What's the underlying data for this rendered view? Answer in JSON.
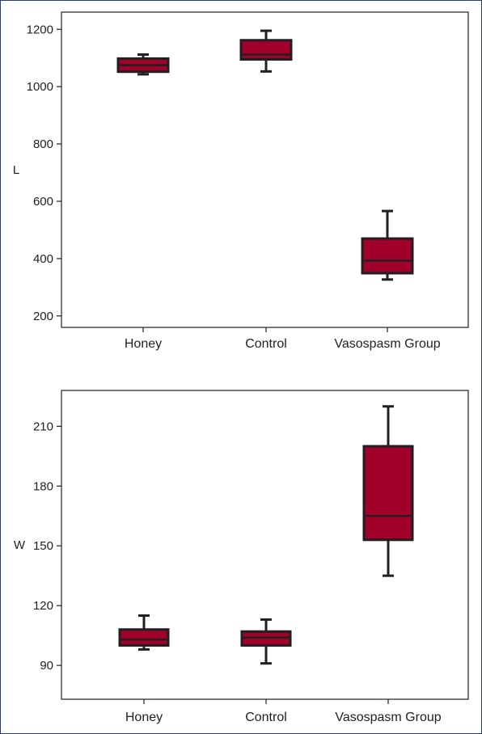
{
  "colors": {
    "box_fill": "#a0002a",
    "box_stroke": "#231f20",
    "axis": "#231f20",
    "frame_border": "#24406b"
  },
  "chart_data": [
    {
      "type": "boxplot",
      "ylabel": "L",
      "categories": [
        "Honey",
        "Control",
        "Vasospasm Group"
      ],
      "ylim": [
        160,
        1260
      ],
      "yticks": [
        200,
        400,
        600,
        800,
        1000,
        1200
      ],
      "boxes": [
        {
          "min": 1043,
          "q1": 1052,
          "median": 1075,
          "q3": 1098,
          "max": 1112
        },
        {
          "min": 1053,
          "q1": 1095,
          "median": 1112,
          "q3": 1162,
          "max": 1195
        },
        {
          "min": 327,
          "q1": 349,
          "median": 393,
          "q3": 470,
          "max": 566
        }
      ],
      "grid": false,
      "legend": "none"
    },
    {
      "type": "boxplot",
      "ylabel": "W",
      "categories": [
        "Honey",
        "Control",
        "Vasospasm Group"
      ],
      "ylim": [
        73,
        228
      ],
      "yticks": [
        90,
        120,
        150,
        180,
        210
      ],
      "boxes": [
        {
          "min": 98,
          "q1": 100,
          "median": 103,
          "q3": 108,
          "max": 115
        },
        {
          "min": 91,
          "q1": 100,
          "median": 104,
          "q3": 107,
          "max": 113
        },
        {
          "min": 135,
          "q1": 153,
          "median": 165,
          "q3": 200,
          "max": 220
        }
      ],
      "grid": false,
      "legend": "none"
    }
  ]
}
